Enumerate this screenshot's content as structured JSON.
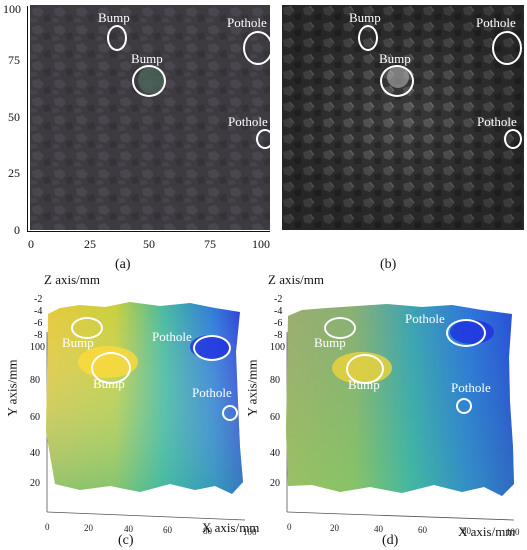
{
  "panel_a": {
    "caption": "(a)",
    "y_ticks": [
      "100",
      "75",
      "50",
      "25",
      "0"
    ],
    "x_ticks": [
      "0",
      "25",
      "50",
      "75",
      "100"
    ],
    "labels": {
      "bump_top": "Bump",
      "bump_mid": "Bump",
      "pothole_top": "Pothole",
      "pothole_mid": "Pothole"
    }
  },
  "panel_b": {
    "caption": "(b)",
    "labels": {
      "bump_top": "Bump",
      "bump_mid": "Bump",
      "pothole_top": "Pothole",
      "pothole_mid": "Pothole"
    }
  },
  "panel_c": {
    "caption": "(c)",
    "z_label": "Z axis/mm",
    "y_label": "Y axis/mm",
    "x_label": "X axis/mm",
    "z_ticks": [
      "-2",
      "-4",
      "-6",
      "-8"
    ],
    "y_ticks": [
      "100",
      "80",
      "60",
      "40",
      "20"
    ],
    "x_ticks": [
      "0",
      "20",
      "40",
      "60",
      "80",
      "100"
    ],
    "labels": {
      "bump_top": "Bump",
      "bump_mid": "Bump",
      "pothole_top": "Pothole",
      "pothole_mid": "Pothole"
    }
  },
  "panel_d": {
    "caption": "(d)",
    "z_label": "Z axis/mm",
    "y_label": "Y axis/mm",
    "x_label": "X axis/mm",
    "z_ticks": [
      "-2",
      "-4",
      "-6",
      "-8"
    ],
    "y_ticks": [
      "100",
      "80",
      "60",
      "40",
      "20"
    ],
    "x_ticks": [
      "0",
      "20",
      "40",
      "60",
      "80",
      "100"
    ],
    "labels": {
      "bump_top": "Bump",
      "bump_mid": "Bump",
      "pothole_top": "Pothole",
      "pothole_mid": "Pothole"
    }
  },
  "colors": {
    "surface_high": "#f2d23a",
    "surface_mid": "#3cb8a0",
    "surface_low": "#2a3bd8",
    "photo_bg": "#3d3a40",
    "gray_bg": "#3a3a3a"
  }
}
